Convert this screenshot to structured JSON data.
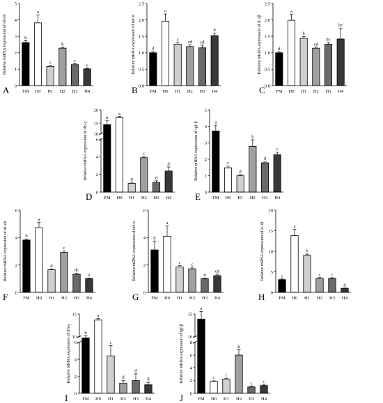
{
  "chart_data": [
    {
      "panel": "A",
      "type": "bar",
      "ylabel": "Relative mRNA expression of nf-κb",
      "categories": [
        "FM",
        "H0",
        "H1",
        "H2",
        "H3",
        "H4"
      ],
      "values": [
        2.62,
        3.82,
        1.17,
        2.28,
        1.28,
        1.02
      ],
      "errors": [
        0.12,
        0.48,
        0.05,
        0.05,
        0.06,
        0.04
      ],
      "letters": [
        "b",
        "a",
        "c",
        "b",
        "c",
        "c"
      ],
      "colors": [
        "#000000",
        "#ffffff",
        "#d0d0d0",
        "#a0a0a0",
        "#6a6a6a",
        "#383838"
      ],
      "ylim": [
        0,
        5
      ],
      "yticks": [
        "0",
        "1",
        "2",
        "3",
        "4",
        "5"
      ]
    },
    {
      "panel": "B",
      "type": "bar",
      "ylabel": "Relative mRNA expression of tnf-α",
      "categories": [
        "FM",
        "H0",
        "H1",
        "H2",
        "H3",
        "H4"
      ],
      "values": [
        1.0,
        1.96,
        1.26,
        1.19,
        1.15,
        1.52
      ],
      "errors": [
        0.04,
        0.22,
        0.05,
        0.05,
        0.08,
        0.08
      ],
      "letters": [
        "d",
        "a",
        "c",
        "cd",
        "cd",
        "b"
      ],
      "colors": [
        "#000000",
        "#ffffff",
        "#d0d0d0",
        "#a0a0a0",
        "#6a6a6a",
        "#383838"
      ],
      "ylim": [
        0,
        2.5
      ],
      "yticks": [
        "0.0",
        "0.5",
        "1.0",
        "1.5",
        "2.0",
        "2.5"
      ]
    },
    {
      "panel": "C",
      "type": "bar",
      "ylabel": "Relative mRNA expression of il-1β",
      "categories": [
        "FM",
        "H0",
        "H1",
        "H2",
        "H3",
        "H4"
      ],
      "values": [
        1.0,
        1.99,
        1.44,
        1.14,
        1.26,
        1.42
      ],
      "errors": [
        0.03,
        0.18,
        0.05,
        0.03,
        0.05,
        0.33
      ],
      "letters": [
        "d",
        "a",
        "b",
        "cd",
        "bc",
        "bc"
      ],
      "colors": [
        "#000000",
        "#ffffff",
        "#d0d0d0",
        "#a0a0a0",
        "#6a6a6a",
        "#383838"
      ],
      "ylim": [
        0,
        2.5
      ],
      "yticks": [
        "0.0",
        "0.5",
        "1.0",
        "1.5",
        "2.0",
        "2.5"
      ]
    },
    {
      "panel": "D",
      "type": "bar",
      "ylabel": "Relative mRNA expression of ifn-γ",
      "categories": [
        "FM",
        "H0",
        "H1",
        "H2",
        "H3",
        "H4"
      ],
      "values": [
        14.5,
        17.2,
        1.0,
        3.9,
        1.1,
        2.4
      ],
      "errors": [
        1.5,
        0.3,
        0.12,
        0.12,
        0.18,
        0.45
      ],
      "letters": [
        "b",
        "a",
        "d",
        "c",
        "d",
        "d"
      ],
      "colors": [
        "#000000",
        "#ffffff",
        "#d0d0d0",
        "#a0a0a0",
        "#6a6a6a",
        "#383838"
      ],
      "ylim": [
        0,
        20
      ],
      "axis_break": [
        6,
        10
      ],
      "yticks": [
        "0",
        "2",
        "4",
        "6",
        "10",
        "15",
        "20"
      ]
    },
    {
      "panel": "E",
      "type": "bar",
      "ylabel": "Relative mRNA expression of tgf-β",
      "categories": [
        "FM",
        "H0",
        "H1",
        "H2",
        "H3",
        "H4"
      ],
      "values": [
        3.72,
        1.48,
        1.0,
        2.78,
        1.78,
        2.28
      ],
      "errors": [
        0.35,
        0.1,
        0.06,
        0.4,
        0.08,
        0.15
      ],
      "letters": [
        "a",
        "c",
        "d",
        "b",
        "d",
        "c"
      ],
      "colors": [
        "#000000",
        "#ffffff",
        "#d0d0d0",
        "#a0a0a0",
        "#6a6a6a",
        "#383838"
      ],
      "ylim": [
        0,
        5
      ],
      "yticks": [
        "0",
        "1",
        "2",
        "3",
        "4",
        "5"
      ]
    },
    {
      "panel": "F",
      "type": "bar",
      "ylabel": "Relative mRNA expression of nf-κb",
      "categories": [
        "FM",
        "H0",
        "H1",
        "H2",
        "H3",
        "H4"
      ],
      "values": [
        3.82,
        4.72,
        1.65,
        2.92,
        1.32,
        1.0
      ],
      "errors": [
        0.08,
        0.38,
        0.06,
        0.1,
        0.08,
        0.04
      ],
      "letters": [
        "b",
        "a",
        "d",
        "c",
        "dc",
        "e"
      ],
      "colors": [
        "#000000",
        "#ffffff",
        "#d0d0d0",
        "#a0a0a0",
        "#6a6a6a",
        "#383838"
      ],
      "ylim": [
        0,
        6
      ],
      "yticks": [
        "0",
        "2",
        "4",
        "6"
      ]
    },
    {
      "panel": "G",
      "type": "bar",
      "ylabel": "Relative mRNA expression of tnf-α",
      "categories": [
        "FM",
        "H0",
        "H1",
        "H2",
        "H3",
        "H4"
      ],
      "values": [
        3.1,
        4.1,
        1.85,
        1.72,
        1.0,
        1.22
      ],
      "errors": [
        0.65,
        0.75,
        0.12,
        0.12,
        0.05,
        0.1
      ],
      "letters": [
        "b",
        "a",
        "c",
        "c",
        "d",
        "cd"
      ],
      "colors": [
        "#000000",
        "#ffffff",
        "#d0d0d0",
        "#a0a0a0",
        "#6a6a6a",
        "#383838"
      ],
      "ylim": [
        0,
        6
      ],
      "yticks": [
        "0",
        "2",
        "4",
        "6"
      ]
    },
    {
      "panel": "H",
      "type": "bar",
      "ylabel": "Relative mRNA expression of il-1β",
      "categories": [
        "FM",
        "H0",
        "H1",
        "H2",
        "H3",
        "H4"
      ],
      "values": [
        3.1,
        13.8,
        9.0,
        3.4,
        3.4,
        1.0
      ],
      "errors": [
        0.15,
        1.5,
        0.3,
        0.2,
        0.15,
        0.05
      ],
      "letters": [
        "c",
        "a",
        "b",
        "c",
        "c",
        "d"
      ],
      "colors": [
        "#000000",
        "#ffffff",
        "#d0d0d0",
        "#a0a0a0",
        "#6a6a6a",
        "#383838"
      ],
      "ylim": [
        0,
        20
      ],
      "yticks": [
        "0",
        "5",
        "10",
        "15",
        "20"
      ]
    },
    {
      "panel": "I",
      "type": "bar",
      "ylabel": "Relative mRNA expression of ifn-γ",
      "categories": [
        "FM",
        "H0",
        "H1",
        "H2",
        "H3",
        "H4"
      ],
      "values": [
        10.3,
        13.8,
        4.4,
        1.2,
        1.5,
        1.0
      ],
      "errors": [
        0.4,
        0.3,
        1.2,
        0.3,
        0.8,
        0.3
      ],
      "letters": [
        "b",
        "a",
        "c",
        "d",
        "d",
        "d"
      ],
      "colors": [
        "#000000",
        "#ffffff",
        "#d0d0d0",
        "#a0a0a0",
        "#6a6a6a",
        "#383838"
      ],
      "ylim": [
        0,
        15
      ],
      "axis_break": [
        6,
        10
      ],
      "yticks": [
        "0",
        "2",
        "4",
        "6",
        "10",
        "15"
      ]
    },
    {
      "panel": "J",
      "type": "bar",
      "ylabel": "Relative mRNA expression of tgf-β",
      "categories": [
        "FM",
        "H0",
        "H1",
        "H2",
        "H3",
        "H4"
      ],
      "values": [
        14.0,
        1.85,
        2.2,
        6.0,
        1.0,
        1.22
      ],
      "errors": [
        1.5,
        0.12,
        0.18,
        0.85,
        0.1,
        0.1
      ],
      "letters": [
        "a",
        "c",
        "c",
        "b",
        "c",
        "c"
      ],
      "colors": [
        "#000000",
        "#ffffff",
        "#d0d0d0",
        "#a0a0a0",
        "#6a6a6a",
        "#383838"
      ],
      "ylim": [
        0,
        15
      ],
      "axis_break": [
        8,
        10
      ],
      "yticks": [
        "0",
        "2",
        "4",
        "6",
        "8",
        "10",
        "15"
      ]
    }
  ]
}
